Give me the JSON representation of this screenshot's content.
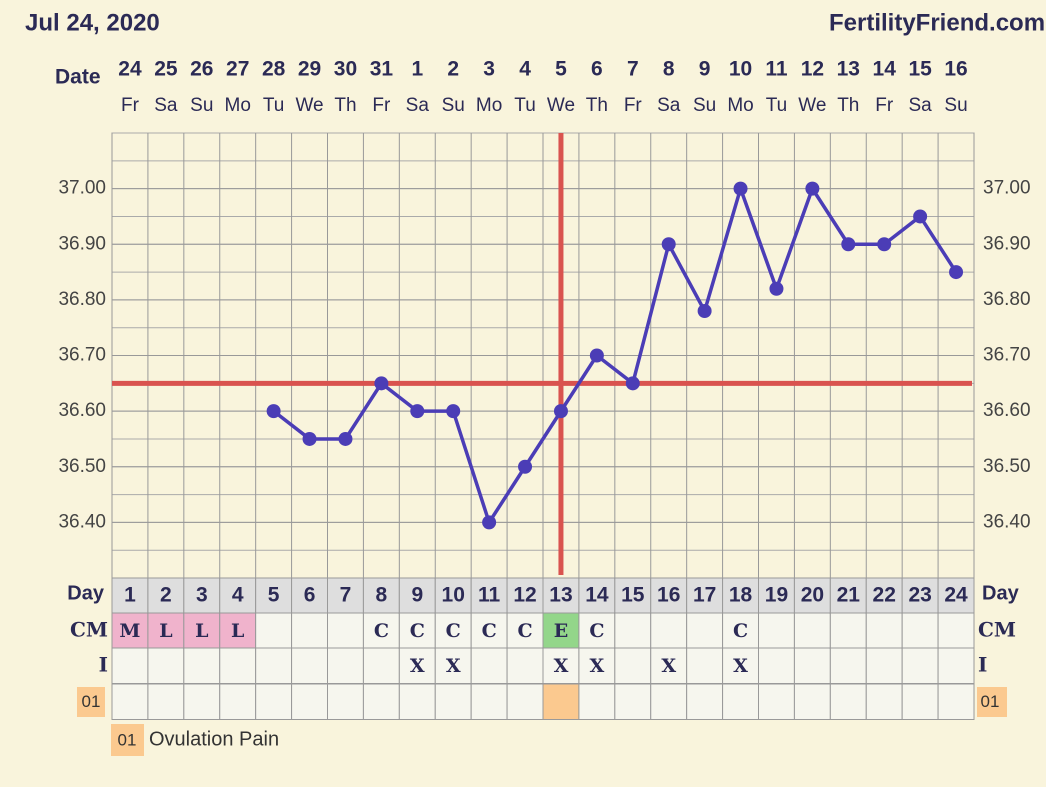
{
  "chart_data": {
    "type": "line",
    "title": "Jul 24, 2020",
    "brand": "FertilityFriend.com",
    "date_label": "Date",
    "dates": [
      "24",
      "25",
      "26",
      "27",
      "28",
      "29",
      "30",
      "31",
      "1",
      "2",
      "3",
      "4",
      "5",
      "6",
      "7",
      "8",
      "9",
      "10",
      "11",
      "12",
      "13",
      "14",
      "15",
      "16"
    ],
    "weekdays": [
      "Fr",
      "Sa",
      "Su",
      "Mo",
      "Tu",
      "We",
      "Th",
      "Fr",
      "Sa",
      "Su",
      "Mo",
      "Tu",
      "We",
      "Th",
      "Fr",
      "Sa",
      "Su",
      "Mo",
      "Tu",
      "We",
      "Th",
      "Fr",
      "Sa",
      "Su"
    ],
    "day_label": "Day",
    "x": [
      1,
      2,
      3,
      4,
      5,
      6,
      7,
      8,
      9,
      10,
      11,
      12,
      13,
      14,
      15,
      16,
      17,
      18,
      19,
      20,
      21,
      22,
      23,
      24
    ],
    "values": [
      null,
      null,
      null,
      null,
      36.6,
      36.55,
      36.55,
      36.65,
      36.6,
      36.6,
      36.4,
      36.5,
      36.6,
      36.7,
      36.65,
      36.9,
      36.78,
      37.0,
      36.82,
      37.0,
      36.9,
      36.9,
      36.95,
      36.85
    ],
    "color": "#4b3db6",
    "ylim": [
      36.3,
      37.1
    ],
    "yticks": [
      {
        "value": 36.4,
        "label": "36.40"
      },
      {
        "value": 36.5,
        "label": "36.50"
      },
      {
        "value": 36.6,
        "label": "36.60"
      },
      {
        "value": 36.7,
        "label": "36.70"
      },
      {
        "value": 36.8,
        "label": "36.80"
      },
      {
        "value": 36.9,
        "label": "36.90"
      },
      {
        "value": 37.0,
        "label": "37.00"
      }
    ],
    "grid": true,
    "coverline": 36.65,
    "ovulation_day": 13,
    "marker_line_color": "#d9534f",
    "rows": [
      {
        "label": "CM",
        "values": [
          "M",
          "L",
          "L",
          "L",
          null,
          null,
          null,
          "C",
          "C",
          "C",
          "C",
          "C",
          "E",
          "C",
          null,
          null,
          null,
          "C",
          null,
          null,
          null,
          null,
          null,
          null
        ]
      },
      {
        "label": "I",
        "values": [
          null,
          null,
          null,
          null,
          null,
          null,
          null,
          null,
          "X",
          "X",
          null,
          null,
          "X",
          "X",
          null,
          "X",
          null,
          "X",
          null,
          null,
          null,
          null,
          null,
          null
        ]
      },
      {
        "label": "01",
        "marked_days": [
          13
        ]
      }
    ],
    "cm_colors": {
      "M": "#f0b3cc",
      "L": "#f0b3cc",
      "E": "#93d68a"
    },
    "marked_color": "#fbc98f",
    "legend": {
      "code": "01",
      "text": "Ovulation Pain"
    }
  }
}
